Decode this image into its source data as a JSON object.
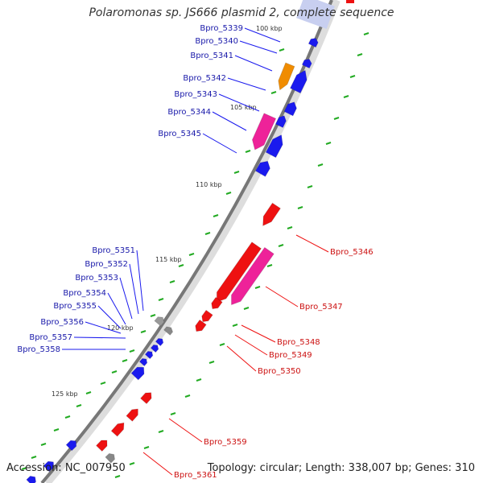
{
  "title": "Polaromonas sp. JS666 plasmid 2, complete sequence",
  "accession": "Accession: NC_007950",
  "summary": "Topology: circular; Length: 338,007 bp; Genes: 310",
  "colors": {
    "forward": "#ee1111",
    "reverse": "#1a1aee",
    "pink": "#ee2299",
    "orange": "#f08c00",
    "gray": "#888888",
    "backbone": "#777777",
    "gc": "#22aa22"
  },
  "ticks": [
    "100 kbp",
    "105 kbp",
    "110 kbp",
    "115 kbp",
    "120 kbp",
    "125 kbp"
  ],
  "labels_left": [
    "Bpro_5339",
    "Bpro_5340",
    "Bpro_5341",
    "Bpro_5342",
    "Bpro_5343",
    "Bpro_5344",
    "Bpro_5345",
    "Bpro_5351",
    "Bpro_5352",
    "Bpro_5353",
    "Bpro_5354",
    "Bpro_5355",
    "Bpro_5356",
    "Bpro_5357",
    "Bpro_5358"
  ],
  "labels_right": [
    "Bpro_5346",
    "Bpro_5347",
    "Bpro_5348",
    "Bpro_5349",
    "Bpro_5350",
    "Bpro_5359",
    "Bpro_5361"
  ]
}
